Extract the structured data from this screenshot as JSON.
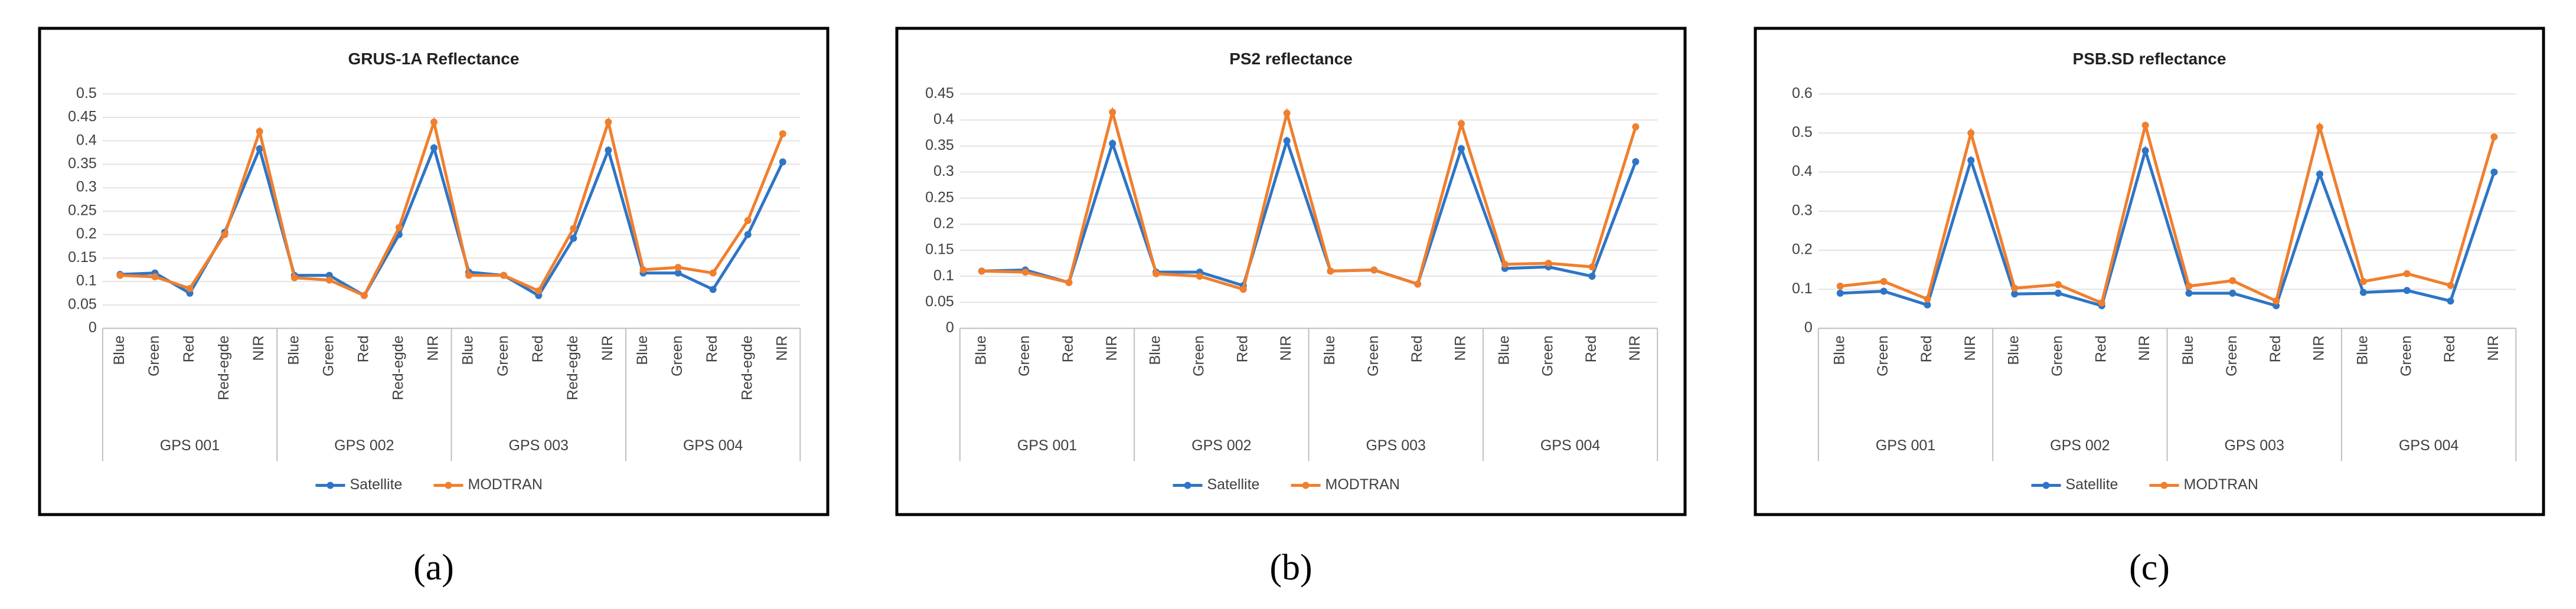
{
  "chart_data": [
    {
      "type": "line",
      "title": "GRUS-1A Reflectance",
      "caption": "(a)",
      "groups": [
        "GPS 001",
        "GPS 002",
        "GPS 003",
        "GPS 004"
      ],
      "categories": [
        "Blue",
        "Green",
        "Red",
        "Red-egde",
        "NIR",
        "Blue",
        "Green",
        "Red",
        "Red-egde",
        "NIR",
        "Blue",
        "Green",
        "Red",
        "Red-egde",
        "NIR",
        "Blue",
        "Green",
        "Red",
        "Red-egde",
        "NIR"
      ],
      "series": [
        {
          "name": "Satellite",
          "color": "#2e75c6",
          "values": [
            0.115,
            0.118,
            0.075,
            0.205,
            0.383,
            0.113,
            0.113,
            0.07,
            0.2,
            0.385,
            0.12,
            0.113,
            0.07,
            0.192,
            0.38,
            0.118,
            0.118,
            0.083,
            0.2,
            0.355
          ]
        },
        {
          "name": "MODTRAN",
          "color": "#f07f2e",
          "values": [
            0.113,
            0.11,
            0.085,
            0.2,
            0.42,
            0.108,
            0.103,
            0.07,
            0.215,
            0.44,
            0.113,
            0.113,
            0.08,
            0.213,
            0.44,
            0.125,
            0.13,
            0.118,
            0.23,
            0.415
          ]
        }
      ],
      "ylim": [
        0,
        0.5
      ],
      "yticks": [
        0,
        0.05,
        0.1,
        0.15,
        0.2,
        0.25,
        0.3,
        0.35,
        0.4,
        0.45,
        0.5
      ],
      "grid": true,
      "legend": "bottom"
    },
    {
      "type": "line",
      "title": "PS2 reflectance",
      "caption": "(b)",
      "groups": [
        "GPS 001",
        "GPS 002",
        "GPS 003",
        "GPS 004"
      ],
      "categories": [
        "Blue",
        "Green",
        "Red",
        "NIR",
        "Blue",
        "Green",
        "Red",
        "NIR",
        "Blue",
        "Green",
        "Red",
        "NIR",
        "Blue",
        "Green",
        "Red",
        "NIR"
      ],
      "series": [
        {
          "name": "Satellite",
          "color": "#2e75c6",
          "values": [
            0.11,
            0.112,
            0.088,
            0.355,
            0.108,
            0.108,
            0.082,
            0.36,
            0.11,
            0.112,
            0.085,
            0.345,
            0.115,
            0.118,
            0.1,
            0.32
          ]
        },
        {
          "name": "MODTRAN",
          "color": "#f07f2e",
          "values": [
            0.11,
            0.108,
            0.088,
            0.415,
            0.105,
            0.1,
            0.075,
            0.413,
            0.11,
            0.112,
            0.085,
            0.393,
            0.123,
            0.125,
            0.118,
            0.387
          ]
        }
      ],
      "ylim": [
        0,
        0.45
      ],
      "yticks": [
        0,
        0.05,
        0.1,
        0.15,
        0.2,
        0.25,
        0.3,
        0.35,
        0.4,
        0.45
      ],
      "grid": true,
      "legend": "bottom"
    },
    {
      "type": "line",
      "title": "PSB.SD reflectance",
      "caption": "(c)",
      "groups": [
        "GPS 001",
        "GPS 002",
        "GPS 003",
        "GPS 004"
      ],
      "categories": [
        "Blue",
        "Green",
        "Red",
        "NIR",
        "Blue",
        "Green",
        "Red",
        "NIR",
        "Blue",
        "Green",
        "Red",
        "NIR",
        "Blue",
        "Green",
        "Red",
        "NIR"
      ],
      "series": [
        {
          "name": "Satellite",
          "color": "#2e75c6",
          "values": [
            0.09,
            0.095,
            0.06,
            0.43,
            0.088,
            0.09,
            0.058,
            0.455,
            0.09,
            0.09,
            0.058,
            0.395,
            0.092,
            0.097,
            0.07,
            0.4
          ]
        },
        {
          "name": "MODTRAN",
          "color": "#f07f2e",
          "values": [
            0.108,
            0.12,
            0.075,
            0.5,
            0.103,
            0.112,
            0.065,
            0.52,
            0.108,
            0.122,
            0.07,
            0.515,
            0.12,
            0.14,
            0.11,
            0.49
          ]
        }
      ],
      "ylim": [
        0,
        0.6
      ],
      "yticks": [
        0,
        0.1,
        0.2,
        0.3,
        0.4,
        0.5,
        0.6
      ],
      "grid": true,
      "legend": "bottom"
    }
  ]
}
